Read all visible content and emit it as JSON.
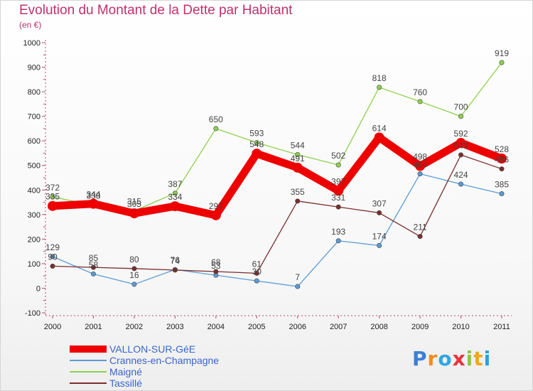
{
  "chart_data": {
    "type": "line",
    "title": "Evolution du Montant de la Dette par Habitant",
    "subtitle": "(en €)",
    "x": [
      "2000",
      "2001",
      "2002",
      "2003",
      "2004",
      "2005",
      "2006",
      "2007",
      "2008",
      "2009",
      "2010",
      "2011"
    ],
    "y_ticks": [
      "1000",
      "900",
      "800",
      "700",
      "600",
      "500",
      "400",
      "300",
      "200",
      "100",
      "0",
      "-100"
    ],
    "ylim": [
      -100,
      1000
    ],
    "grid": false,
    "legend_position": "bottom-left",
    "series": [
      {
        "name": "VALLON-SUR-GéE",
        "color": "#ee0000",
        "values": [
          335,
          344,
          305,
          334,
          297,
          548,
          491,
          397,
          614,
          498,
          592,
          528
        ],
        "labels": [
          "335",
          "344",
          "305",
          "334",
          "297",
          "548",
          "491",
          "397",
          "614",
          "498",
          "592",
          "528"
        ]
      },
      {
        "name": "Crannes-en-Champagne",
        "color": "#5b9bd5",
        "values": [
          129,
          58,
          16,
          76,
          53,
          30,
          7,
          193,
          174,
          466,
          424,
          385
        ],
        "labels": [
          "129",
          "58",
          "16",
          "76",
          "53",
          "30",
          "7",
          "193",
          "174",
          "466",
          "424",
          "385"
        ]
      },
      {
        "name": "Maigné",
        "color": "#8fd14f",
        "values": [
          372,
          338,
          315,
          387,
          650,
          593,
          544,
          502,
          818,
          760,
          700,
          919
        ],
        "labels": [
          "372",
          "338",
          "315",
          "387",
          "650",
          "593",
          "544",
          "502",
          "818",
          "760",
          "700",
          "919"
        ]
      },
      {
        "name": "Tassillé",
        "color": "#7b2d2d",
        "values": [
          90,
          85,
          80,
          74,
          68,
          61,
          355,
          331,
          307,
          211,
          543,
          486
        ],
        "labels": [
          "90",
          "85",
          "80",
          "74",
          "68",
          "61",
          "355",
          "331",
          "307",
          "211",
          "543",
          "486"
        ]
      }
    ]
  },
  "logo": {
    "letters": [
      "P",
      "r",
      "o",
      "x",
      "i",
      "t",
      "i"
    ],
    "colors": [
      "#3b7fd6",
      "#f08c1e",
      "#2ea8e0",
      "#e8323c",
      "#8cc63f",
      "#f0a81e",
      "#2e9ee0"
    ]
  }
}
